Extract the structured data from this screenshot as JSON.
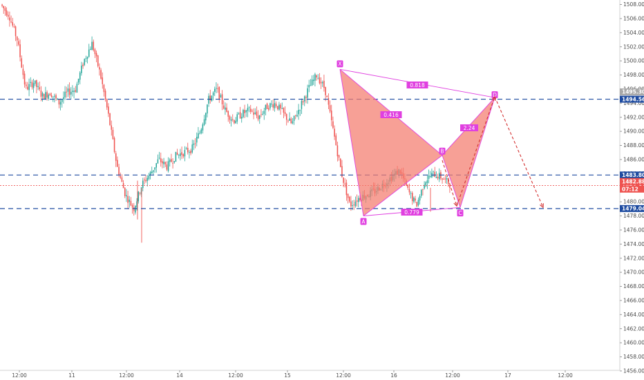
{
  "chart_data": {
    "type": "candlestick",
    "title": "",
    "xlabel": "",
    "ylabel": "",
    "ylim": [
      1455,
      1509
    ],
    "x_tick_labels": [
      "12:00",
      "11",
      "12:00",
      "14",
      "12:00",
      "15",
      "12:00",
      "16",
      "12:00",
      "17",
      "12:00"
    ],
    "y_ticks": [
      1456,
      1458,
      1460,
      1462,
      1464,
      1466,
      1468,
      1470,
      1472,
      1474,
      1476,
      1478,
      1480,
      1482,
      1484,
      1486,
      1488,
      1490,
      1492,
      1494,
      1496,
      1498,
      1500,
      1502,
      1504,
      1506,
      1508
    ],
    "y_tick_labels": [
      "1456.000",
      "1458.000",
      "1460.000",
      "1462.000",
      "1464.000",
      "1466.000",
      "1468.000",
      "1470.000",
      "1472.000",
      "1474.000",
      "1476.000",
      "1478.000",
      "1480.000",
      "1482.000",
      "1484.000",
      "1486.000",
      "1488.000",
      "1490.000",
      "1492.000",
      "1494.000",
      "1496.000",
      "1498.000",
      "1500.000",
      "1502.000",
      "1504.000",
      "1506.000",
      "1508.000"
    ],
    "candle_colors": {
      "up": "#26a69a",
      "down": "#ef5350"
    },
    "close_path": [
      1508,
      1506.5,
      1503,
      1496,
      1497,
      1495,
      1495.5,
      1494,
      1495.5,
      1496,
      1500,
      1502.5,
      1498,
      1492,
      1485,
      1481,
      1479,
      1482.5,
      1484,
      1486,
      1485,
      1486.5,
      1487,
      1487.5,
      1490,
      1494.5,
      1496,
      1493,
      1491.5,
      1492.5,
      1493,
      1492,
      1493.5,
      1494,
      1492.5,
      1491,
      1493.5,
      1496,
      1498,
      1496,
      1490,
      1484,
      1479.5,
      1480.5,
      1481,
      1481.5,
      1482.5,
      1483.5,
      1484.5,
      1481.5,
      1479.5,
      1483,
      1484,
      1483.5,
      1482.5
    ],
    "horizontal_levels": [
      {
        "value": 1494.562,
        "label": "1494.562",
        "color": "#1e4ba0",
        "style": "dashed"
      },
      {
        "value": 1483.805,
        "label": "1483.805",
        "color": "#1e4ba0",
        "style": "dashed"
      },
      {
        "value": 1479.044,
        "label": "1479.044",
        "color": "#1e4ba0",
        "style": "dashed"
      },
      {
        "value": 1482.312,
        "label": "1482.312",
        "color": "#ef5350",
        "style": "dotted"
      }
    ],
    "price_labels": [
      {
        "value": 1482.883,
        "label": "1482.883",
        "color": "#ef5350"
      },
      {
        "value": 1481.8,
        "label": "07:12",
        "color": "#ef5350"
      },
      {
        "value": 1495.6,
        "label": "1495.300",
        "color": "#a8a8a8"
      }
    ],
    "harmonic_pattern": {
      "fill_color": "#f47b6e",
      "line_color": "#e040e0",
      "points": [
        {
          "name": "X",
          "value": 1498.8
        },
        {
          "name": "A",
          "value": 1478.0
        },
        {
          "name": "B",
          "value": 1486.6
        },
        {
          "name": "C",
          "value": 1479.2
        },
        {
          "name": "D",
          "value": 1494.8
        }
      ],
      "ratios": [
        {
          "label": "0.416"
        },
        {
          "label": "0.818"
        },
        {
          "label": "0.779"
        },
        {
          "label": "2.24"
        }
      ],
      "projection": {
        "target": 1479.2,
        "color": "#d32f2f"
      }
    }
  }
}
